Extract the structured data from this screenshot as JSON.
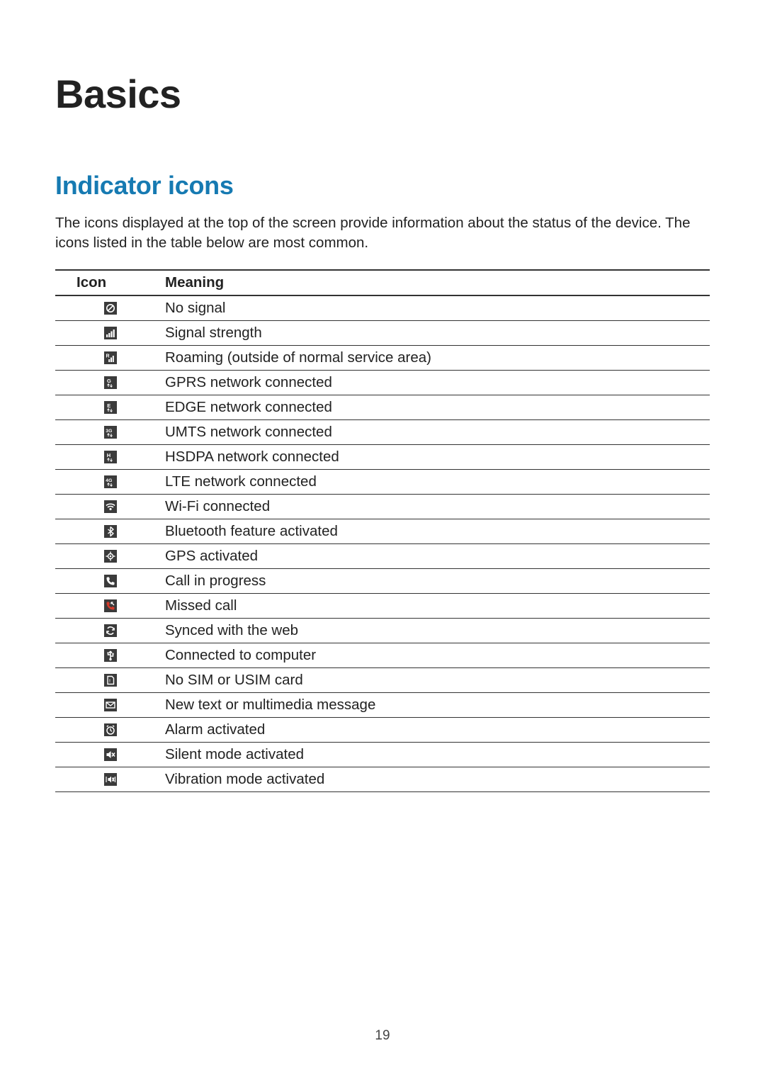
{
  "page": {
    "chapter_title": "Basics",
    "section_title": "Indicator icons",
    "section_intro": "The icons displayed at the top of the screen provide information about the status of the device. The icons listed in the table below are most common.",
    "page_number": "19"
  },
  "colors": {
    "text": "#222222",
    "section_heading": "#167ab2",
    "rule": "#333333",
    "icon_bg": "#3b3b3b",
    "icon_fg": "#ffffff",
    "missed_red": "#d43a2a",
    "background": "#ffffff"
  },
  "typography": {
    "chapter_fontsize": 56,
    "section_fontsize": 36,
    "body_fontsize": 20.5,
    "pagenum_fontsize": 19
  },
  "table": {
    "columns": [
      "Icon",
      "Meaning"
    ],
    "rows": [
      {
        "icon": "no-signal-icon",
        "meaning": "No signal"
      },
      {
        "icon": "signal-icon",
        "meaning": "Signal strength"
      },
      {
        "icon": "roaming-icon",
        "meaning": "Roaming (outside of normal service area)"
      },
      {
        "icon": "gprs-icon",
        "meaning": "GPRS network connected"
      },
      {
        "icon": "edge-icon",
        "meaning": "EDGE network connected"
      },
      {
        "icon": "umts-icon",
        "meaning": "UMTS network connected"
      },
      {
        "icon": "hsdpa-icon",
        "meaning": "HSDPA network connected"
      },
      {
        "icon": "lte-icon",
        "meaning": "LTE network connected"
      },
      {
        "icon": "wifi-icon",
        "meaning": "Wi-Fi connected"
      },
      {
        "icon": "bluetooth-icon",
        "meaning": "Bluetooth feature activated"
      },
      {
        "icon": "gps-icon",
        "meaning": "GPS activated"
      },
      {
        "icon": "call-icon",
        "meaning": "Call in progress"
      },
      {
        "icon": "missed-call-icon",
        "meaning": "Missed call"
      },
      {
        "icon": "sync-icon",
        "meaning": "Synced with the web"
      },
      {
        "icon": "usb-icon",
        "meaning": "Connected to computer"
      },
      {
        "icon": "no-sim-icon",
        "meaning": "No SIM or USIM card"
      },
      {
        "icon": "message-icon",
        "meaning": "New text or multimedia message"
      },
      {
        "icon": "alarm-icon",
        "meaning": "Alarm activated"
      },
      {
        "icon": "silent-icon",
        "meaning": "Silent mode activated"
      },
      {
        "icon": "vibration-icon",
        "meaning": "Vibration mode activated"
      }
    ]
  }
}
